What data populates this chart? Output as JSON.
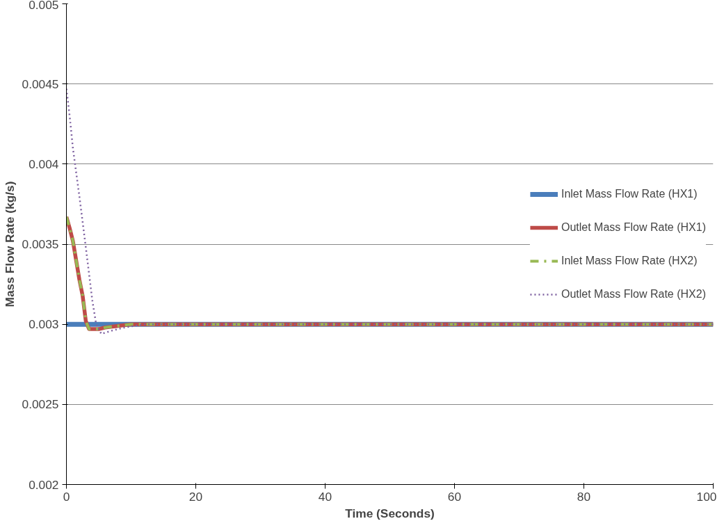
{
  "chart_data": {
    "type": "line",
    "xlabel": "Time (Seconds)",
    "ylabel": "Mass Flow Rate (kg/s)",
    "xlim": [
      0,
      100
    ],
    "xticks": [
      0,
      20,
      40,
      60,
      80,
      100
    ],
    "ylim": [
      0.002,
      0.005
    ],
    "yticks": [
      0.002,
      0.0025,
      0.003,
      0.0035,
      0.004,
      0.0045,
      0.005
    ],
    "grid": "y",
    "legend": "right",
    "series": [
      {
        "name": "Inlet Mass Flow Rate (HX1)",
        "color": "#4a7ebb",
        "line_style": "solid",
        "x": [
          0,
          100
        ],
        "values": [
          0.003,
          0.003
        ]
      },
      {
        "name": "Outlet Mass Flow Rate (HX1)",
        "color": "#be4b48",
        "line_style": "solid",
        "x": [
          0,
          0.5,
          1,
          1.5,
          2,
          2.5,
          3,
          3.5,
          4,
          5,
          6,
          8,
          10,
          15,
          100
        ],
        "values": [
          0.00367,
          0.0036,
          0.00352,
          0.0034,
          0.00328,
          0.00318,
          0.00302,
          0.00297,
          0.00297,
          0.00297,
          0.00298,
          0.00299,
          0.003,
          0.003,
          0.003
        ]
      },
      {
        "name": "Inlet Mass Flow Rate (HX2)",
        "color": "#98b954",
        "line_style": "dashdot",
        "x": [
          0,
          0.5,
          1,
          1.5,
          2,
          2.5,
          3,
          3.5,
          4,
          5,
          6,
          8,
          10,
          15,
          100
        ],
        "values": [
          0.00367,
          0.0036,
          0.00352,
          0.0034,
          0.00328,
          0.00318,
          0.00302,
          0.00297,
          0.00297,
          0.00297,
          0.00298,
          0.00299,
          0.003,
          0.003,
          0.003
        ]
      },
      {
        "name": "Outlet Mass Flow Rate (HX2)",
        "color": "#7d60a0",
        "line_style": "dotted",
        "x": [
          0,
          0.5,
          1,
          2,
          3,
          4,
          4.6,
          5.4,
          7,
          9,
          12,
          20,
          100
        ],
        "values": [
          0.00447,
          0.0043,
          0.0041,
          0.0038,
          0.00348,
          0.00315,
          0.003,
          0.00294,
          0.00296,
          0.00298,
          0.003,
          0.003,
          0.003
        ]
      }
    ]
  }
}
